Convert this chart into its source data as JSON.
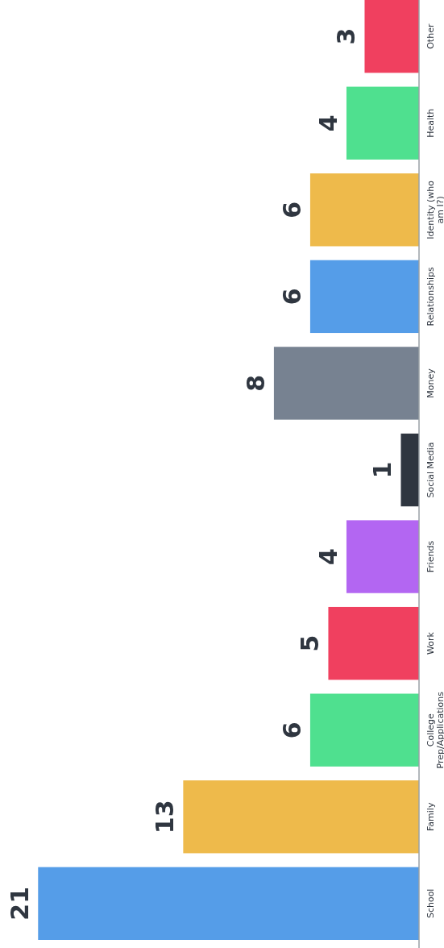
{
  "chart_data": {
    "type": "bar",
    "orientation": "horizontal",
    "categories": [
      "Other",
      "Health",
      "Identity (who am I?)",
      "Relationships",
      "Money",
      "Social Media",
      "Friends",
      "Work",
      "College Prep/Applications",
      "Family",
      "School"
    ],
    "values": [
      3,
      4,
      6,
      6,
      8,
      1,
      4,
      5,
      6,
      13,
      21
    ],
    "colors": [
      "#f0405f",
      "#4fe08f",
      "#eeba4b",
      "#559de8",
      "#778291",
      "#2f3640",
      "#b366f2",
      "#f0405f",
      "#4fe08f",
      "#eeba4b",
      "#559de8"
    ],
    "data_labels": true
  }
}
